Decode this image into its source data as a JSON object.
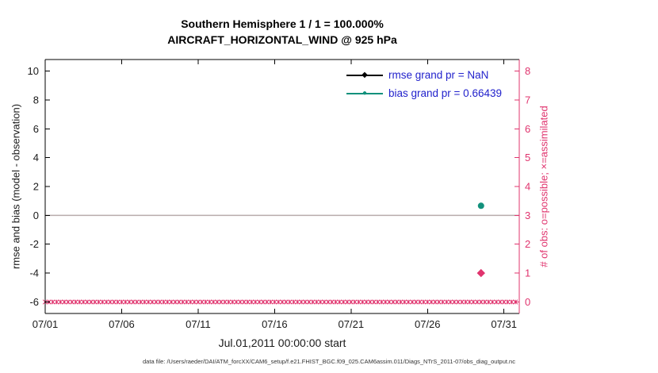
{
  "title": {
    "line1": "Southern Hemisphere 1 / 1 = 100.000%",
    "line2": "AIRCRAFT_HORIZONTAL_WIND @ 925 hPa"
  },
  "footer": "data file: /Users/raeder/DAI/ATM_forcXX/CAM6_setup/f.e21.FHIST_BGC.f09_025.CAM6assim.011/Diags_NTrS_2011-07/obs_diag_output.nc",
  "colors": {
    "obs_pink": "#e0346e",
    "bias_teal": "#12917c",
    "rmse_black": "#000000",
    "zero_line": "#b8abab",
    "legend_text": "#2222cc",
    "axis_black": "#000000"
  },
  "chart_data": {
    "type": "scatter",
    "title": "Southern Hemisphere 1 / 1 = 100.000% — AIRCRAFT_HORIZONTAL_WIND @ 925 hPa",
    "xlabel": "Jul.01,2011 00:00:00 start",
    "ylabel_left": "rmse and bias (model - observation)",
    "ylabel_right": "# of obs: o=possible; ×=assimilated",
    "x_tick_labels": [
      "07/01",
      "07/06",
      "07/11",
      "07/16",
      "07/21",
      "07/26",
      "07/31"
    ],
    "x_tick_days": [
      0,
      5,
      10,
      15,
      20,
      25,
      30
    ],
    "x_range_days": [
      0,
      31
    ],
    "yleft_ticks": [
      "10",
      "8",
      "6",
      "4",
      "2",
      "0",
      "-2",
      "-4",
      "-6"
    ],
    "yleft_tick_values": [
      10,
      8,
      6,
      4,
      2,
      0,
      -2,
      -4,
      -6
    ],
    "yleft_range": [
      -6.8,
      10.8
    ],
    "yright_ticks": [
      "8",
      "7",
      "6",
      "5",
      "4",
      "3",
      "2",
      "1",
      "0"
    ],
    "yright_tick_values": [
      8,
      7,
      6,
      5,
      4,
      3,
      2,
      1,
      0
    ],
    "yright_range": [
      -0.4,
      8.4
    ],
    "zero_line_value": 0,
    "grid": false,
    "legend_position": "top-right-inside",
    "rmse_series": {
      "name": "rmse",
      "grand_pr": "NaN",
      "marker": "diamond",
      "points": []
    },
    "bias_series": {
      "name": "bias",
      "grand_pr": 0.66439,
      "marker": "circle",
      "points": [
        {
          "day": 28.5,
          "value": 0.66439
        }
      ]
    },
    "obs_count_series": {
      "name": "# of obs",
      "axis": "right",
      "marker": "asterisk",
      "dense_zero_row": {
        "start_day": 0,
        "end_day": 30.75,
        "step_days": 0.25,
        "count": 0
      },
      "points": [
        {
          "day": 28.5,
          "count": 1,
          "marker": "diamond"
        }
      ]
    },
    "legend": [
      {
        "label": "rmse grand pr = NaN",
        "marker": "diamond",
        "color_key": "rmse_black"
      },
      {
        "label": "bias grand pr = 0.66439",
        "marker": "circle",
        "color_key": "bias_teal"
      }
    ]
  }
}
